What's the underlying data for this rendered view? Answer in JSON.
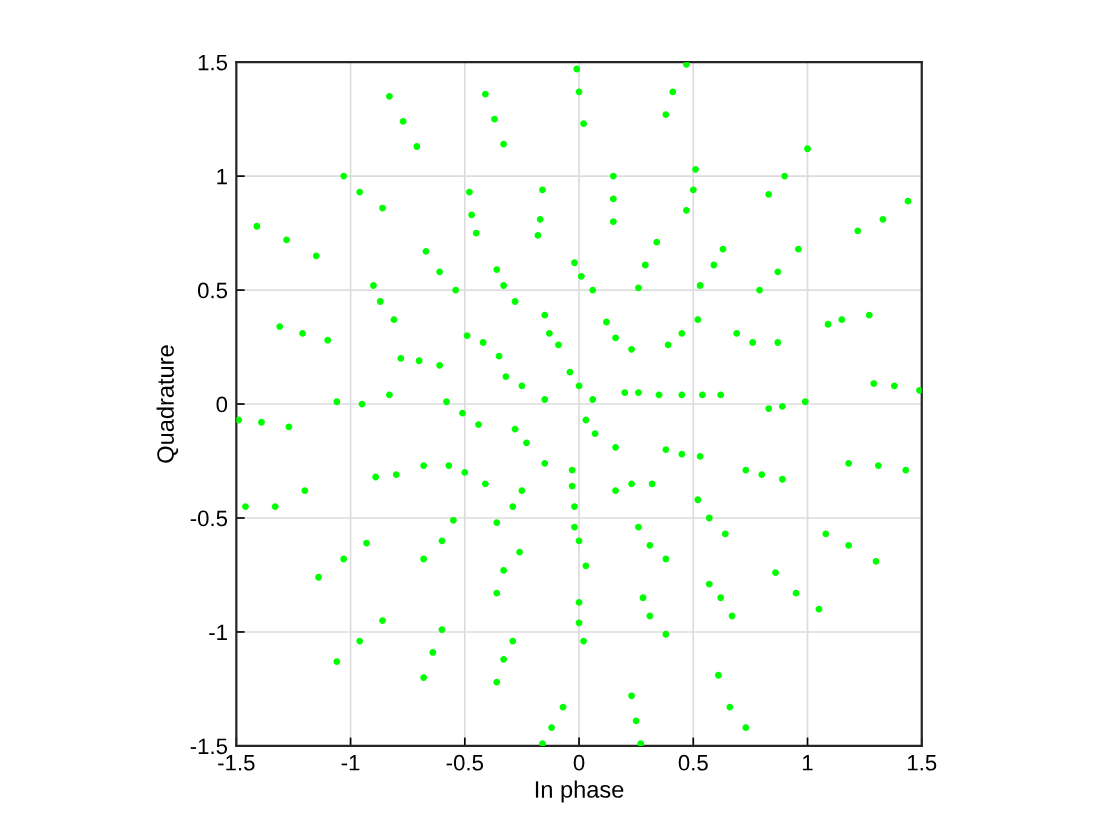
{
  "chart_data": {
    "type": "scatter",
    "xlabel": "In phase",
    "ylabel": "Quadrature",
    "color": "#00ff00",
    "marker": "circle",
    "grid": true,
    "xlim": [
      -1.5,
      1.5
    ],
    "ylim": [
      -1.5,
      1.5
    ],
    "xticks": [
      -1.5,
      -1,
      -0.5,
      0,
      0.5,
      1,
      1.5
    ],
    "yticks": [
      -1.5,
      -1,
      -0.5,
      0,
      0.5,
      1,
      1.5
    ],
    "x": [
      -0.83,
      -0.77,
      -0.71,
      -0.41,
      -0.37,
      -0.33,
      -0.01,
      0.0,
      0.02,
      -1.03,
      -0.96,
      -0.86,
      -1.41,
      -1.28,
      -1.15,
      -0.48,
      -0.47,
      -0.45,
      -0.16,
      -0.17,
      -0.18,
      -0.67,
      -0.61,
      -0.54,
      -0.36,
      -0.33,
      -0.28,
      -0.02,
      0.01,
      0.06,
      -0.9,
      -0.87,
      -0.81,
      -1.31,
      -1.21,
      -1.1,
      -0.78,
      -0.7,
      -0.61,
      -0.49,
      -0.42,
      -0.35,
      -0.15,
      -0.13,
      -0.09,
      -0.32,
      -0.25,
      -0.15,
      -0.04,
      0.0,
      0.06,
      -1.06,
      -0.95,
      -0.83,
      -1.49,
      -1.39,
      -1.27,
      -0.58,
      -0.51,
      -0.44,
      0.47,
      0.41,
      0.38,
      1.0,
      0.9,
      0.83,
      1.44,
      1.33,
      1.22,
      0.15,
      0.15,
      0.15,
      0.51,
      0.5,
      0.47,
      0.34,
      0.29,
      0.26,
      0.63,
      0.59,
      0.53,
      0.96,
      0.87,
      0.79,
      1.09,
      1.15,
      1.27,
      0.12,
      0.16,
      0.23,
      0.52,
      0.45,
      0.39,
      0.69,
      0.76,
      0.87,
      1.29,
      1.38,
      1.49,
      0.2,
      0.26,
      0.35,
      0.45,
      0.54,
      0.62,
      0.83,
      0.89,
      0.99,
      0.03,
      0.07,
      0.16,
      0.38,
      0.45,
      0.53,
      0.16,
      0.23,
      0.32,
      0.73,
      0.8,
      0.89,
      1.18,
      1.31,
      1.43,
      -0.03,
      -0.03,
      -0.02,
      0.52,
      0.57,
      0.64,
      1.08,
      1.18,
      1.3,
      -0.02,
      0.0,
      0.03,
      0.26,
      0.31,
      0.38,
      0.86,
      0.95,
      1.05,
      0.57,
      0.62,
      0.67,
      0.0,
      0.0,
      0.02,
      0.28,
      0.31,
      0.38,
      0.61,
      0.66,
      0.73,
      0.23,
      0.25,
      0.27,
      -0.28,
      -0.23,
      -0.15,
      -0.89,
      -0.8,
      -0.68,
      -0.57,
      -0.5,
      -0.41,
      -1.46,
      -1.33,
      -1.2,
      -0.25,
      -0.29,
      -0.36,
      -0.55,
      -0.6,
      -0.68,
      -0.93,
      -1.03,
      -1.14,
      -0.26,
      -0.33,
      -0.36,
      -0.86,
      -0.96,
      -1.06,
      -0.6,
      -0.64,
      -0.68,
      -0.29,
      -0.33,
      -0.36,
      -0.07,
      -0.12,
      -0.16
    ],
    "values": [
      1.35,
      1.24,
      1.13,
      1.36,
      1.25,
      1.14,
      1.47,
      1.37,
      1.23,
      1.0,
      0.93,
      0.86,
      0.78,
      0.72,
      0.65,
      0.93,
      0.83,
      0.75,
      0.94,
      0.81,
      0.74,
      0.67,
      0.58,
      0.5,
      0.59,
      0.52,
      0.45,
      0.62,
      0.56,
      0.5,
      0.52,
      0.45,
      0.37,
      0.34,
      0.31,
      0.28,
      0.2,
      0.19,
      0.17,
      0.3,
      0.27,
      0.21,
      0.39,
      0.31,
      0.26,
      0.12,
      0.08,
      0.02,
      0.14,
      0.08,
      0.02,
      0.01,
      0.0,
      0.04,
      -0.07,
      -0.08,
      -0.1,
      0.01,
      -0.04,
      -0.09,
      1.49,
      1.37,
      1.27,
      1.12,
      1.0,
      0.92,
      0.89,
      0.81,
      0.76,
      1.0,
      0.9,
      0.8,
      1.03,
      0.94,
      0.85,
      0.71,
      0.61,
      0.51,
      0.68,
      0.61,
      0.52,
      0.68,
      0.58,
      0.5,
      0.35,
      0.37,
      0.39,
      0.36,
      0.29,
      0.24,
      0.37,
      0.31,
      0.26,
      0.31,
      0.27,
      0.27,
      0.09,
      0.08,
      0.06,
      0.05,
      0.05,
      0.04,
      0.04,
      0.04,
      0.04,
      -0.02,
      -0.01,
      0.01,
      -0.07,
      -0.13,
      -0.19,
      -0.2,
      -0.22,
      -0.23,
      -0.38,
      -0.35,
      -0.35,
      -0.29,
      -0.31,
      -0.33,
      -0.26,
      -0.27,
      -0.29,
      -0.29,
      -0.36,
      -0.45,
      -0.42,
      -0.5,
      -0.57,
      -0.57,
      -0.62,
      -0.69,
      -0.54,
      -0.6,
      -0.71,
      -0.54,
      -0.62,
      -0.68,
      -0.74,
      -0.83,
      -0.9,
      -0.79,
      -0.85,
      -0.93,
      -0.87,
      -0.96,
      -1.04,
      -0.85,
      -0.93,
      -1.01,
      -1.19,
      -1.33,
      -1.42,
      -1.28,
      -1.39,
      -1.49,
      -0.11,
      -0.17,
      -0.26,
      -0.32,
      -0.31,
      -0.27,
      -0.27,
      -0.3,
      -0.35,
      -0.45,
      -0.45,
      -0.38,
      -0.38,
      -0.45,
      -0.52,
      -0.51,
      -0.6,
      -0.68,
      -0.61,
      -0.68,
      -0.76,
      -0.65,
      -0.73,
      -0.83,
      -0.95,
      -1.04,
      -1.13,
      -0.99,
      -1.09,
      -1.2,
      -1.04,
      -1.12,
      -1.22,
      -1.33,
      -1.42,
      -1.49
    ]
  }
}
